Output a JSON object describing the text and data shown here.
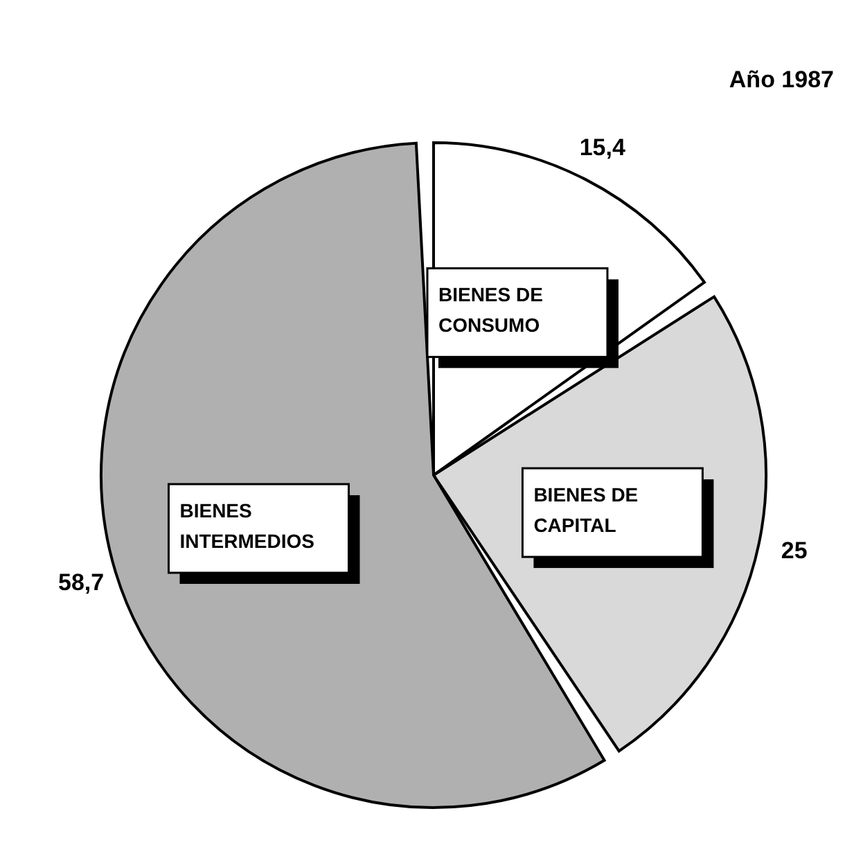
{
  "chart_data": {
    "type": "pie",
    "title": "Año 1987",
    "categories": [
      "BIENES DE CONSUMO",
      "BIENES DE CAPITAL",
      "BIENES INTERMEDIOS"
    ],
    "values": [
      15.4,
      25,
      58.7
    ],
    "value_labels": [
      "15,4",
      "25",
      "58,7"
    ],
    "colors": [
      "#ffffff",
      "#d9d9d9",
      "#b0b0b0"
    ]
  }
}
